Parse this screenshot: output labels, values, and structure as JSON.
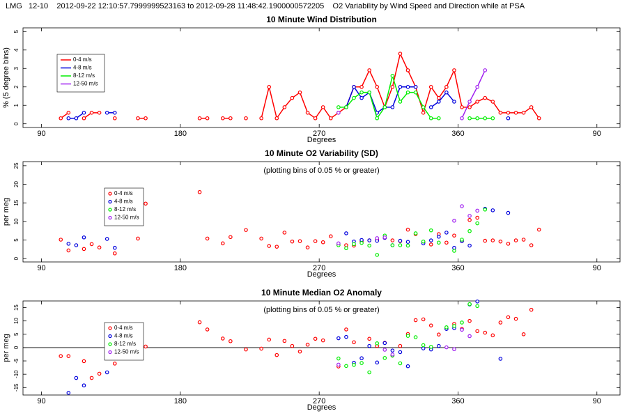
{
  "header": "LMG   12-10    2012-09-22 12:10:57.7999999523163 to 2012-09-28 11:48:42.1900000572205    O2 Variability by Wind Speed and Direction while at PSA",
  "chart_data": [
    {
      "type": "line",
      "title": "10 Minute Wind Distribution",
      "xlabel": "Degrees",
      "ylabel": "% (5 degree bins)",
      "xlim": [
        78,
        465
      ],
      "xticks": [
        90,
        180,
        270,
        360,
        {
          "value": 450,
          "label": "90"
        }
      ],
      "ylim": [
        -0.2,
        5.2
      ],
      "yticks": [
        0,
        1,
        2,
        3,
        4,
        5
      ],
      "legend": "upper left",
      "series": [
        {
          "name": "0-4 m/s",
          "color": "#ff0000",
          "x": [
            102.5,
            107.5,
            null,
            117.5,
            122.5,
            127.5,
            null,
            137.5,
            null,
            152.5,
            157.5,
            null,
            192.5,
            197.5,
            null,
            207.5,
            212.5,
            null,
            222.5,
            null,
            232.5,
            237.5,
            242.5,
            247.5,
            252.5,
            257.5,
            262.5,
            267.5,
            272.5,
            277.5,
            282.5,
            287.5,
            292.5,
            297.5,
            302.5,
            307.5,
            312.5,
            317.5,
            322.5,
            327.5,
            332.5,
            337.5,
            342.5,
            347.5,
            352.5,
            357.5,
            362.5,
            367.5,
            372.5,
            377.5,
            382.5,
            387.5,
            392.5,
            397.5,
            402.5,
            407.5,
            412.5
          ],
          "values": [
            0.3,
            0.6,
            null,
            0.3,
            0.6,
            0.6,
            null,
            0.3,
            null,
            0.3,
            0.3,
            null,
            0.3,
            0.3,
            null,
            0.3,
            0.3,
            null,
            0.3,
            null,
            0.3,
            2.0,
            0.3,
            0.9,
            1.4,
            1.7,
            0.6,
            0.3,
            0.9,
            0.3,
            0.6,
            0.9,
            2.0,
            2.0,
            2.9,
            2.0,
            0.9,
            2.0,
            3.8,
            2.9,
            2.0,
            0.6,
            2.0,
            1.4,
            2.0,
            2.9,
            0.9,
            0.9,
            1.2,
            1.4,
            1.2,
            0.6,
            0.6,
            0.6,
            0.6,
            0.9,
            0.3
          ]
        },
        {
          "name": "4-8 m/s",
          "color": "#0000dd",
          "x": [
            107.5,
            112.5,
            117.5,
            null,
            132.5,
            137.5,
            null,
            287.5,
            292.5,
            297.5,
            302.5,
            307.5,
            312.5,
            317.5,
            322.5,
            327.5,
            332.5,
            null,
            342.5,
            347.5,
            352.5,
            357.5,
            null,
            392.5
          ],
          "values": [
            0.3,
            0.3,
            0.6,
            null,
            0.6,
            0.6,
            null,
            0.9,
            2.0,
            1.4,
            1.7,
            0.6,
            0.9,
            0.9,
            2.0,
            2.0,
            2.0,
            null,
            0.9,
            1.2,
            1.7,
            1.2,
            null,
            0.3
          ]
        },
        {
          "name": "8-12 m/s",
          "color": "#00ee00",
          "x": [
            282.5,
            287.5,
            292.5,
            297.5,
            302.5,
            307.5,
            312.5,
            317.5,
            322.5,
            327.5,
            332.5,
            337.5,
            342.5,
            347.5,
            null,
            367.5,
            372.5,
            377.5,
            382.5
          ],
          "values": [
            0.9,
            0.9,
            1.4,
            1.7,
            1.7,
            0.3,
            0.9,
            2.6,
            1.2,
            1.7,
            1.7,
            0.9,
            0.3,
            0.3,
            null,
            0.3,
            0.3,
            0.3,
            0.3
          ]
        },
        {
          "name": "12-50 m/s",
          "color": "#a020f0",
          "x": [
            282.5,
            null,
            362.5,
            367.5,
            372.5,
            377.5
          ],
          "values": [
            0.6,
            null,
            0.3,
            1.2,
            2.0,
            2.9
          ]
        }
      ]
    },
    {
      "type": "scatter",
      "title": "10 Minute O2 Variability (SD)",
      "annotation": "(plotting bins of 0.05 % or greater)",
      "xlabel": "Degrees",
      "ylabel": "per meg",
      "xlim": [
        78,
        465
      ],
      "xticks": [
        90,
        180,
        270,
        360,
        {
          "value": 450,
          "label": "90"
        }
      ],
      "ylim": [
        -0.9,
        26.1
      ],
      "yticks": [
        0,
        5,
        10,
        15,
        20,
        25
      ],
      "legend": "upper left",
      "series": [
        {
          "name": "0-4 m/s",
          "color": "#ff0000",
          "x": [
            102.5,
            107.5,
            117.5,
            122.5,
            127.5,
            137.5,
            152.5,
            157.5,
            192.5,
            197.5,
            207.5,
            212.5,
            222.5,
            232.5,
            237.5,
            242.5,
            247.5,
            252.5,
            257.5,
            262.5,
            267.5,
            272.5,
            277.5,
            282.5,
            287.5,
            292.5,
            297.5,
            302.5,
            307.5,
            312.5,
            317.5,
            322.5,
            327.5,
            332.5,
            337.5,
            342.5,
            347.5,
            352.5,
            357.5,
            362.5,
            367.5,
            372.5,
            377.5,
            382.5,
            387.5,
            392.5,
            397.5,
            402.5,
            407.5,
            412.5
          ],
          "values": [
            5.1,
            2.2,
            2.6,
            3.9,
            3.0,
            1.4,
            5.4,
            14.8,
            17.9,
            5.4,
            4.1,
            5.8,
            7.7,
            5.4,
            3.4,
            3.2,
            7.0,
            4.6,
            4.7,
            3.0,
            4.7,
            4.4,
            6.0,
            3.7,
            3.6,
            3.5,
            4.6,
            4.9,
            5.1,
            5.6,
            4.9,
            4.7,
            7.8,
            6.6,
            4.4,
            3.8,
            6.6,
            4.3,
            6.2,
            4.7,
            10.4,
            11.0,
            4.8,
            4.9,
            4.6,
            4.0,
            4.9,
            5.1,
            3.6,
            7.8
          ]
        },
        {
          "name": "4-8 m/s",
          "color": "#0000dd",
          "x": [
            107.5,
            112.5,
            117.5,
            132.5,
            137.5,
            287.5,
            292.5,
            297.5,
            302.5,
            307.5,
            312.5,
            317.5,
            322.5,
            327.5,
            337.5,
            342.5,
            347.5,
            352.5,
            357.5,
            362.5,
            367.5,
            377.5,
            382.5,
            392.5
          ],
          "values": [
            4.0,
            3.6,
            5.7,
            5.3,
            2.9,
            6.8,
            4.6,
            5.0,
            4.9,
            4.8,
            5.6,
            3.6,
            4.8,
            4.5,
            4.1,
            4.9,
            5.9,
            7.0,
            2.9,
            4.7,
            3.5,
            13.4,
            13.0,
            12.3
          ]
        },
        {
          "name": "8-12 m/s",
          "color": "#00ee00",
          "x": [
            282.5,
            287.5,
            292.5,
            297.5,
            302.5,
            307.5,
            312.5,
            317.5,
            322.5,
            327.5,
            332.5,
            337.5,
            342.5,
            347.5,
            357.5,
            362.5,
            367.5,
            372.5,
            377.5
          ],
          "values": [
            3.6,
            2.8,
            3.9,
            4.2,
            3.5,
            1.0,
            6.2,
            3.6,
            3.6,
            3.5,
            6.8,
            4.6,
            7.6,
            4.3,
            2.1,
            5.1,
            7.4,
            9.5,
            13.2
          ]
        },
        {
          "name": "12-50 m/s",
          "color": "#a020f0",
          "x": [
            282.5,
            307.5,
            312.5,
            357.5,
            362.5,
            367.5,
            372.5
          ],
          "values": [
            4.1,
            5.5,
            5.7,
            10.2,
            14.1,
            11.5,
            12.9
          ]
        }
      ]
    },
    {
      "type": "scatter",
      "title": "10 Minute Median O2 Anomaly",
      "annotation": "(plotting bins of 0.05 % or greater)",
      "xlabel": "Degrees",
      "ylabel": "per meg",
      "xlim": [
        78,
        465
      ],
      "xticks": [
        90,
        180,
        270,
        360,
        {
          "value": 450,
          "label": "90"
        }
      ],
      "ylim": [
        -17.8,
        17.5
      ],
      "yticks": [
        -15,
        -10,
        -5,
        0,
        5,
        10,
        15
      ],
      "legend": "upper left",
      "zero_line": true,
      "series": [
        {
          "name": "0-4 m/s",
          "color": "#ff0000",
          "x": [
            102.5,
            107.5,
            117.5,
            122.5,
            127.5,
            137.5,
            157.5,
            192.5,
            197.5,
            207.5,
            212.5,
            222.5,
            232.5,
            237.5,
            242.5,
            247.5,
            252.5,
            257.5,
            262.5,
            267.5,
            272.5,
            282.5,
            287.5,
            292.5,
            302.5,
            307.5,
            312.5,
            317.5,
            322.5,
            327.5,
            332.5,
            337.5,
            342.5,
            347.5,
            352.5,
            357.5,
            362.5,
            367.5,
            372.5,
            377.5,
            382.5,
            387.5,
            392.5,
            397.5,
            402.5,
            407.5
          ],
          "values": [
            -3.2,
            -3.2,
            -5.1,
            -11.4,
            -9.8,
            -6.0,
            0.4,
            9.5,
            6.8,
            3.4,
            2.4,
            -0.7,
            -0.4,
            3.0,
            -2.8,
            2.5,
            0.6,
            -1.5,
            1.1,
            3.3,
            2.7,
            -7.1,
            6.8,
            2.0,
            3.3,
            0.6,
            1.8,
            -3.0,
            0.6,
            5.1,
            10.3,
            10.6,
            8.3,
            4.9,
            7.1,
            8.9,
            7.0,
            10.0,
            6.2,
            5.6,
            4.6,
            9.4,
            11.4,
            10.8,
            5.0,
            14.2
          ]
        },
        {
          "name": "4-8 m/s",
          "color": "#0000dd",
          "x": [
            107.5,
            112.5,
            117.5,
            132.5,
            282.5,
            287.5,
            292.5,
            297.5,
            302.5,
            307.5,
            312.5,
            317.5,
            322.5,
            327.5,
            337.5,
            342.5,
            347.5,
            352.5,
            357.5,
            367.5,
            372.5,
            387.5
          ],
          "values": [
            -17.0,
            -11.4,
            -14.2,
            -9.3,
            3.5,
            4.0,
            -5.7,
            -4.0,
            0.6,
            -5.6,
            1.7,
            -1.1,
            -1.7,
            -7.0,
            -0.3,
            -0.7,
            0.6,
            7.0,
            7.3,
            16.2,
            17.3,
            -4.2
          ]
        },
        {
          "name": "8-12 m/s",
          "color": "#00ee00",
          "x": [
            282.5,
            287.5,
            292.5,
            297.5,
            302.5,
            307.5,
            312.5,
            317.5,
            322.5,
            327.5,
            332.5,
            337.5,
            342.5,
            352.5,
            357.5,
            362.5,
            367.5,
            372.5
          ],
          "values": [
            -4.1,
            -6.9,
            -6.5,
            -5.8,
            -9.3,
            1.6,
            -3.9,
            -3.0,
            -5.9,
            4.4,
            3.9,
            0.9,
            0.3,
            7.6,
            8.1,
            9.4,
            16.3,
            15.6
          ]
        },
        {
          "name": "12-50 m/s",
          "color": "#a020f0",
          "x": [
            282.5,
            312.5,
            317.5,
            352.5,
            357.5,
            362.5,
            367.5
          ],
          "values": [
            -6.4,
            -0.8,
            -2.6,
            0.1,
            -0.6,
            6.7,
            4.3
          ]
        }
      ]
    }
  ]
}
